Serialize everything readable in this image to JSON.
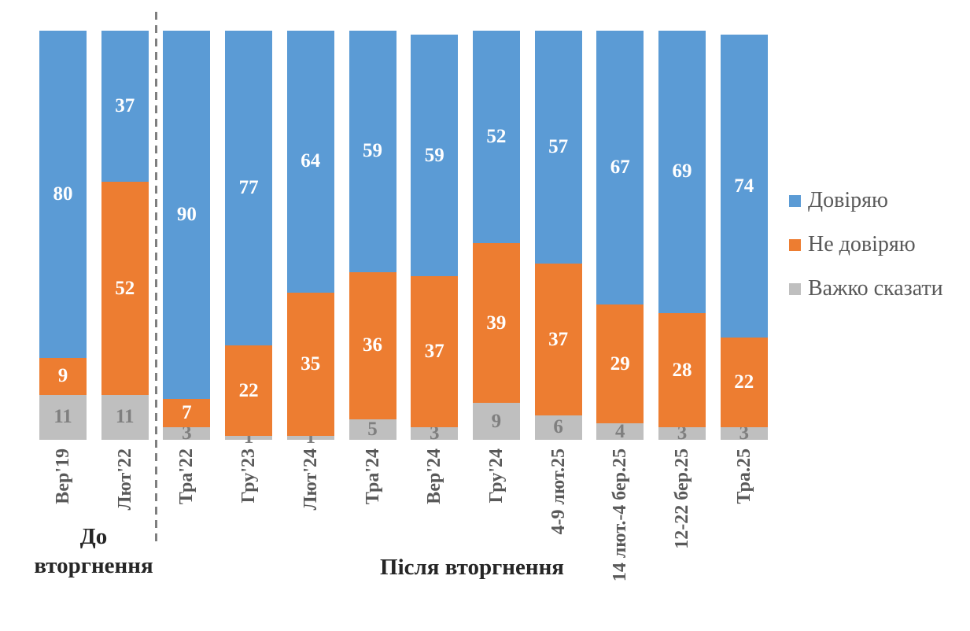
{
  "colors": {
    "trust": "#5B9BD5",
    "distrust": "#ED7D31",
    "hard_to_say": "#BFBFBF",
    "value_label_light": "#FFFFFF",
    "value_label_gray": "#7F7F7F",
    "axis_label": "#595959",
    "group_label": "#262626",
    "legend_text": "#595959",
    "separator_line": "#7F7F7F",
    "background": "#FFFFFF"
  },
  "legend": {
    "items": [
      {
        "label": "Довіряю",
        "key": "trust"
      },
      {
        "label": "Не довіряю",
        "key": "distrust"
      },
      {
        "label": "Важко сказати",
        "key": "hard_to_say"
      }
    ]
  },
  "groups": {
    "before_line1": "До",
    "before_line2": "вторгнення",
    "after": "Після вторгнення"
  },
  "chart_data": {
    "type": "bar",
    "stacked": true,
    "grid": false,
    "ylim": [
      0,
      100
    ],
    "legend_position": "right",
    "categories": [
      "Вер'19",
      "Лют'22",
      "Тра'22",
      "Гру'23",
      "Лют'24",
      "Тра'24",
      "Вер'24",
      "Гру'24",
      "4-9 лют.25",
      "14 лют.-4 бер.25",
      "12-22 бер.25",
      "Тра.25"
    ],
    "series": [
      {
        "name": "Довіряю",
        "color": "#5B9BD5",
        "values": [
          80,
          37,
          90,
          77,
          64,
          59,
          59,
          52,
          57,
          67,
          69,
          74
        ]
      },
      {
        "name": "Не довіряю",
        "color": "#ED7D31",
        "values": [
          9,
          52,
          7,
          22,
          35,
          36,
          37,
          39,
          37,
          29,
          28,
          22
        ]
      },
      {
        "name": "Важко сказати",
        "color": "#BFBFBF",
        "values": [
          11,
          11,
          3,
          1,
          1,
          5,
          3,
          9,
          6,
          4,
          3,
          3
        ]
      }
    ],
    "stack_order_bottom_to_top": [
      "Важко сказати",
      "Не довіряю",
      "Довіряю"
    ],
    "separator_after_category_index": 1,
    "group_annotations": [
      {
        "label": "До вторгнення",
        "category_range": [
          0,
          1
        ]
      },
      {
        "label": "Після вторгнення",
        "category_range": [
          2,
          11
        ]
      }
    ]
  }
}
